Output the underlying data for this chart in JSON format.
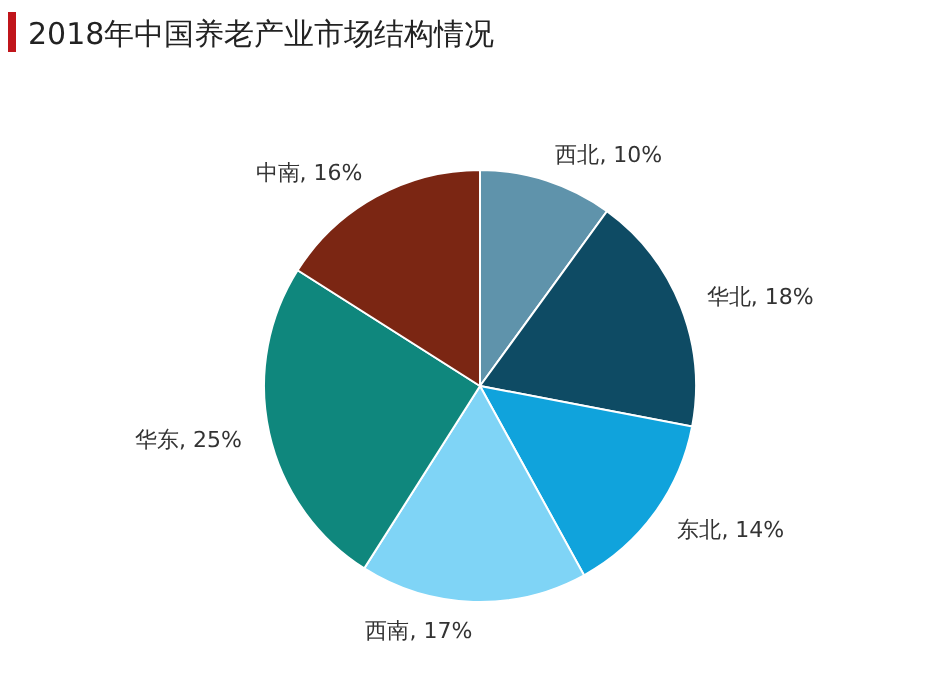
{
  "chart_data": {
    "type": "pie",
    "title": "2018年中国养老产业市场结构情况",
    "categories": [
      "西北",
      "华北",
      "东北",
      "西南",
      "华东",
      "中南"
    ],
    "values": [
      10,
      18,
      14,
      17,
      25,
      16
    ],
    "value_labels": [
      "10%",
      "18%",
      "14%",
      "17%",
      "25%",
      "16%"
    ],
    "colors": [
      "#5f93ab",
      "#0e4b64",
      "#10a3dc",
      "#7fd4f6",
      "#0f877d",
      "#7b2613"
    ]
  }
}
